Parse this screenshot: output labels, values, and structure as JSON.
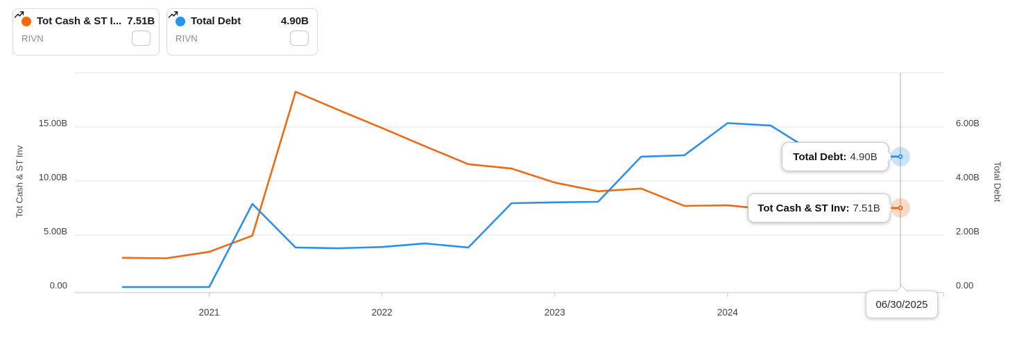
{
  "legend": {
    "cards": [
      {
        "label": "Tot Cash & ST I...",
        "value": "7.51B",
        "ticker": "RIVN",
        "dot_color": "#f76a0c",
        "icon": "sparkline-icon"
      },
      {
        "label": "Total Debt",
        "value": "4.90B",
        "ticker": "RIVN",
        "dot_color": "#2196f3",
        "icon": "sparkline-icon"
      }
    ]
  },
  "tooltips": {
    "cash": {
      "label": "Tot Cash & ST Inv:",
      "value": "7.51B"
    },
    "debt": {
      "label": "Total Debt:",
      "value": "4.90B"
    },
    "date": {
      "value": "06/30/2025"
    }
  },
  "chart_data": {
    "type": "line",
    "title": "",
    "grid": true,
    "legend_position": "top-left",
    "x": {
      "periods": [
        "2020-Q4",
        "2021-Q1",
        "2021-Q2",
        "2021-Q3",
        "2021-Q4",
        "2022-Q1",
        "2022-Q2",
        "2022-Q3",
        "2022-Q4",
        "2023-Q1",
        "2023-Q2",
        "2023-Q3",
        "2023-Q4",
        "2024-Q1",
        "2024-Q2",
        "2024-Q3",
        "2024-Q4",
        "2025-Q1",
        "2025-Q2"
      ],
      "year_tick_labels": [
        "2021",
        "2022",
        "2023",
        "2024"
      ],
      "year_tick_period_indices": [
        2,
        6,
        10,
        14
      ]
    },
    "left_axis": {
      "title": "Tot Cash & ST Inv",
      "tick_labels": [
        "15.00B",
        "10.00B",
        "5.00B",
        "0.00"
      ],
      "tick_values": [
        15,
        10,
        5,
        0
      ],
      "range_billions": [
        0,
        20
      ]
    },
    "right_axis": {
      "title": "Total Debt",
      "tick_labels": [
        "6.00B",
        "4.00B",
        "2.00B",
        "0.00"
      ],
      "tick_values": [
        6,
        4,
        2,
        0
      ],
      "range_billions": [
        0,
        8
      ]
    },
    "series": [
      {
        "name": "Tot Cash & ST Inv",
        "ticker": "RIVN",
        "axis": "left",
        "color": "#ec6a13",
        "values_billions": [
          2.9,
          2.85,
          3.45,
          4.95,
          18.25,
          16.55,
          14.9,
          13.2,
          11.55,
          11.15,
          9.85,
          9.05,
          9.3,
          7.7,
          7.75,
          7.35,
          7.7,
          7.2,
          7.51
        ]
      },
      {
        "name": "Total Debt",
        "ticker": "RIVN",
        "axis": "right",
        "color": "#2b90ec",
        "values_billions": [
          0.08,
          0.08,
          0.08,
          3.15,
          1.54,
          1.51,
          1.56,
          1.69,
          1.54,
          3.18,
          3.21,
          3.23,
          4.9,
          4.95,
          6.14,
          6.05,
          5.05,
          4.95,
          4.9
        ]
      }
    ],
    "crosshair": {
      "period_index": 18,
      "date_label": "06/30/2025"
    }
  }
}
